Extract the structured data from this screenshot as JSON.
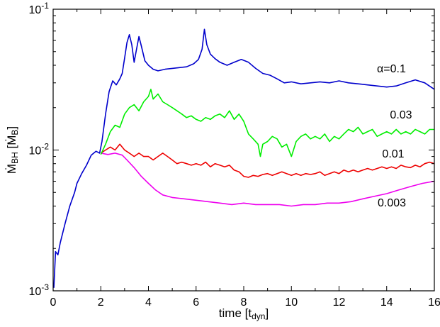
{
  "chart_data": {
    "type": "line",
    "xlabel_main": "time [t",
    "xlabel_sub": "dyn",
    "xlabel_close": "]",
    "ylabel_main": "Ṁ",
    "ylabel_sub": "BH",
    "ylabel_unit_open": " [Ṁ",
    "ylabel_unit_sub": "B",
    "ylabel_unit_close": "]",
    "xlim": [
      0,
      16
    ],
    "ylim": [
      0.001,
      0.1
    ],
    "yscale": "log",
    "grid": false,
    "x_ticks": [
      "0",
      "2",
      "4",
      "6",
      "8",
      "10",
      "12",
      "14",
      "16"
    ],
    "y_ticks": [
      {
        "value": 0.001,
        "base": "10",
        "exp": "-3"
      },
      {
        "value": 0.01,
        "base": "10",
        "exp": "-2"
      },
      {
        "value": 0.1,
        "base": "10",
        "exp": "-1"
      }
    ],
    "series": [
      {
        "name": "α=0.1",
        "color": "#0000cc",
        "points": [
          [
            0.03,
            0.00105
          ],
          [
            0.1,
            0.0019
          ],
          [
            0.2,
            0.0018
          ],
          [
            0.3,
            0.0022
          ],
          [
            0.5,
            0.003
          ],
          [
            0.7,
            0.004
          ],
          [
            0.9,
            0.005
          ],
          [
            1.0,
            0.0058
          ],
          [
            1.2,
            0.0068
          ],
          [
            1.4,
            0.0078
          ],
          [
            1.6,
            0.0092
          ],
          [
            1.8,
            0.0098
          ],
          [
            1.95,
            0.0095
          ],
          [
            2.05,
            0.0115
          ],
          [
            2.2,
            0.018
          ],
          [
            2.35,
            0.026
          ],
          [
            2.5,
            0.031
          ],
          [
            2.65,
            0.029
          ],
          [
            2.8,
            0.032
          ],
          [
            2.9,
            0.035
          ],
          [
            3.0,
            0.045
          ],
          [
            3.1,
            0.058
          ],
          [
            3.2,
            0.066
          ],
          [
            3.3,
            0.056
          ],
          [
            3.4,
            0.042
          ],
          [
            3.5,
            0.052
          ],
          [
            3.6,
            0.064
          ],
          [
            3.7,
            0.055
          ],
          [
            3.85,
            0.043
          ],
          [
            4.0,
            0.04
          ],
          [
            4.2,
            0.0375
          ],
          [
            4.4,
            0.0365
          ],
          [
            4.7,
            0.0375
          ],
          [
            5.0,
            0.038
          ],
          [
            5.3,
            0.0385
          ],
          [
            5.6,
            0.039
          ],
          [
            5.9,
            0.041
          ],
          [
            6.1,
            0.044
          ],
          [
            6.25,
            0.052
          ],
          [
            6.35,
            0.072
          ],
          [
            6.45,
            0.056
          ],
          [
            6.6,
            0.048
          ],
          [
            6.8,
            0.0445
          ],
          [
            7.0,
            0.042
          ],
          [
            7.3,
            0.04
          ],
          [
            7.6,
            0.042
          ],
          [
            7.9,
            0.044
          ],
          [
            8.2,
            0.042
          ],
          [
            8.5,
            0.038
          ],
          [
            8.8,
            0.035
          ],
          [
            9.1,
            0.034
          ],
          [
            9.4,
            0.032
          ],
          [
            9.7,
            0.03
          ],
          [
            10.0,
            0.0305
          ],
          [
            10.4,
            0.0295
          ],
          [
            10.8,
            0.03
          ],
          [
            11.2,
            0.0305
          ],
          [
            11.6,
            0.03
          ],
          [
            12.0,
            0.031
          ],
          [
            12.4,
            0.03
          ],
          [
            12.8,
            0.0295
          ],
          [
            13.2,
            0.029
          ],
          [
            13.6,
            0.0285
          ],
          [
            14.0,
            0.028
          ],
          [
            14.4,
            0.0285
          ],
          [
            14.8,
            0.03
          ],
          [
            15.2,
            0.0315
          ],
          [
            15.6,
            0.03
          ],
          [
            16.0,
            0.027
          ]
        ]
      },
      {
        "name": "0.03",
        "color": "#00ee00",
        "points": [
          [
            2.0,
            0.0093
          ],
          [
            2.2,
            0.011
          ],
          [
            2.4,
            0.0135
          ],
          [
            2.6,
            0.015
          ],
          [
            2.8,
            0.0145
          ],
          [
            3.0,
            0.018
          ],
          [
            3.2,
            0.02
          ],
          [
            3.4,
            0.021
          ],
          [
            3.6,
            0.019
          ],
          [
            3.8,
            0.022
          ],
          [
            4.0,
            0.024
          ],
          [
            4.1,
            0.027
          ],
          [
            4.2,
            0.023
          ],
          [
            4.4,
            0.025
          ],
          [
            4.6,
            0.022
          ],
          [
            4.8,
            0.021
          ],
          [
            5.0,
            0.02
          ],
          [
            5.2,
            0.019
          ],
          [
            5.4,
            0.018
          ],
          [
            5.6,
            0.017
          ],
          [
            5.8,
            0.0175
          ],
          [
            6.0,
            0.0165
          ],
          [
            6.2,
            0.016
          ],
          [
            6.4,
            0.017
          ],
          [
            6.6,
            0.0165
          ],
          [
            6.8,
            0.0175
          ],
          [
            7.0,
            0.018
          ],
          [
            7.2,
            0.017
          ],
          [
            7.4,
            0.019
          ],
          [
            7.6,
            0.0165
          ],
          [
            7.8,
            0.018
          ],
          [
            8.0,
            0.016
          ],
          [
            8.2,
            0.013
          ],
          [
            8.4,
            0.012
          ],
          [
            8.6,
            0.011
          ],
          [
            8.7,
            0.009
          ],
          [
            8.8,
            0.011
          ],
          [
            9.0,
            0.0115
          ],
          [
            9.2,
            0.0125
          ],
          [
            9.4,
            0.012
          ],
          [
            9.6,
            0.0105
          ],
          [
            9.8,
            0.011
          ],
          [
            10.0,
            0.009
          ],
          [
            10.2,
            0.0115
          ],
          [
            10.4,
            0.0125
          ],
          [
            10.6,
            0.013
          ],
          [
            10.8,
            0.012
          ],
          [
            11.0,
            0.0125
          ],
          [
            11.2,
            0.012
          ],
          [
            11.4,
            0.013
          ],
          [
            11.6,
            0.0115
          ],
          [
            11.8,
            0.0125
          ],
          [
            12.0,
            0.012
          ],
          [
            12.2,
            0.013
          ],
          [
            12.4,
            0.014
          ],
          [
            12.6,
            0.0135
          ],
          [
            12.8,
            0.0145
          ],
          [
            13.0,
            0.013
          ],
          [
            13.2,
            0.0135
          ],
          [
            13.4,
            0.014
          ],
          [
            13.6,
            0.0125
          ],
          [
            13.8,
            0.013
          ],
          [
            14.0,
            0.0135
          ],
          [
            14.2,
            0.013
          ],
          [
            14.4,
            0.014
          ],
          [
            14.6,
            0.013
          ],
          [
            14.8,
            0.0135
          ],
          [
            15.0,
            0.013
          ],
          [
            15.2,
            0.014
          ],
          [
            15.4,
            0.0135
          ],
          [
            15.6,
            0.013
          ],
          [
            15.8,
            0.014
          ],
          [
            16.0,
            0.014
          ]
        ]
      },
      {
        "name": "0.01",
        "color": "#ee0000",
        "points": [
          [
            2.0,
            0.0095
          ],
          [
            2.2,
            0.01
          ],
          [
            2.4,
            0.0105
          ],
          [
            2.6,
            0.01
          ],
          [
            2.8,
            0.011
          ],
          [
            3.0,
            0.01
          ],
          [
            3.2,
            0.0095
          ],
          [
            3.4,
            0.009
          ],
          [
            3.6,
            0.0095
          ],
          [
            3.8,
            0.009
          ],
          [
            4.0,
            0.009
          ],
          [
            4.2,
            0.0085
          ],
          [
            4.4,
            0.009
          ],
          [
            4.6,
            0.0095
          ],
          [
            4.8,
            0.009
          ],
          [
            5.0,
            0.0085
          ],
          [
            5.2,
            0.008
          ],
          [
            5.4,
            0.0082
          ],
          [
            5.6,
            0.008
          ],
          [
            5.8,
            0.0078
          ],
          [
            6.0,
            0.008
          ],
          [
            6.2,
            0.0078
          ],
          [
            6.4,
            0.0082
          ],
          [
            6.6,
            0.0076
          ],
          [
            6.8,
            0.008
          ],
          [
            7.0,
            0.0078
          ],
          [
            7.2,
            0.0076
          ],
          [
            7.4,
            0.0078
          ],
          [
            7.6,
            0.0072
          ],
          [
            7.8,
            0.007
          ],
          [
            8.0,
            0.0065
          ],
          [
            8.2,
            0.0064
          ],
          [
            8.4,
            0.0066
          ],
          [
            8.6,
            0.0065
          ],
          [
            8.8,
            0.0067
          ],
          [
            9.0,
            0.0068
          ],
          [
            9.2,
            0.0066
          ],
          [
            9.4,
            0.0068
          ],
          [
            9.6,
            0.007
          ],
          [
            9.8,
            0.0068
          ],
          [
            10.0,
            0.0066
          ],
          [
            10.2,
            0.0068
          ],
          [
            10.4,
            0.0066
          ],
          [
            10.6,
            0.0068
          ],
          [
            10.8,
            0.0067
          ],
          [
            11.0,
            0.0068
          ],
          [
            11.2,
            0.007
          ],
          [
            11.4,
            0.0066
          ],
          [
            11.6,
            0.0068
          ],
          [
            11.8,
            0.007
          ],
          [
            12.0,
            0.0068
          ],
          [
            12.2,
            0.0072
          ],
          [
            12.4,
            0.007
          ],
          [
            12.6,
            0.0072
          ],
          [
            12.8,
            0.007
          ],
          [
            13.0,
            0.0072
          ],
          [
            13.2,
            0.0074
          ],
          [
            13.4,
            0.0072
          ],
          [
            13.6,
            0.0074
          ],
          [
            13.8,
            0.0076
          ],
          [
            14.0,
            0.0074
          ],
          [
            14.2,
            0.0076
          ],
          [
            14.4,
            0.0074
          ],
          [
            14.6,
            0.0078
          ],
          [
            14.8,
            0.0076
          ],
          [
            15.0,
            0.0075
          ],
          [
            15.2,
            0.0078
          ],
          [
            15.4,
            0.0076
          ],
          [
            15.6,
            0.008
          ],
          [
            15.8,
            0.0082
          ],
          [
            16.0,
            0.008
          ]
        ]
      },
      {
        "name": "0.003",
        "color": "#ee00ee",
        "points": [
          [
            2.0,
            0.0095
          ],
          [
            2.3,
            0.0093
          ],
          [
            2.6,
            0.0095
          ],
          [
            2.9,
            0.0092
          ],
          [
            3.1,
            0.0085
          ],
          [
            3.4,
            0.0075
          ],
          [
            3.7,
            0.0065
          ],
          [
            4.0,
            0.0058
          ],
          [
            4.3,
            0.0052
          ],
          [
            4.6,
            0.0048
          ],
          [
            5.0,
            0.0046
          ],
          [
            5.5,
            0.0045
          ],
          [
            6.0,
            0.0044
          ],
          [
            6.5,
            0.0043
          ],
          [
            7.0,
            0.0042
          ],
          [
            7.5,
            0.0041
          ],
          [
            8.0,
            0.0042
          ],
          [
            8.5,
            0.0041
          ],
          [
            9.0,
            0.0041
          ],
          [
            9.5,
            0.0041
          ],
          [
            10.0,
            0.004
          ],
          [
            10.5,
            0.0041
          ],
          [
            11.0,
            0.0041
          ],
          [
            11.5,
            0.0042
          ],
          [
            12.0,
            0.0042
          ],
          [
            12.5,
            0.0043
          ],
          [
            13.0,
            0.0045
          ],
          [
            13.5,
            0.0047
          ],
          [
            14.0,
            0.0049
          ],
          [
            14.5,
            0.0052
          ],
          [
            15.0,
            0.0055
          ],
          [
            15.5,
            0.0058
          ],
          [
            16.0,
            0.006
          ]
        ]
      }
    ],
    "initial_segment": {
      "color": "#0000cc",
      "points": [
        [
          0.03,
          0.00105
        ],
        [
          0.1,
          0.0019
        ],
        [
          0.2,
          0.0018
        ],
        [
          0.3,
          0.0022
        ],
        [
          0.5,
          0.003
        ],
        [
          0.7,
          0.004
        ],
        [
          0.9,
          0.005
        ],
        [
          1.0,
          0.0058
        ],
        [
          1.2,
          0.0068
        ],
        [
          1.4,
          0.0078
        ],
        [
          1.6,
          0.0092
        ],
        [
          1.8,
          0.0098
        ],
        [
          2.0,
          0.0095
        ]
      ]
    }
  }
}
